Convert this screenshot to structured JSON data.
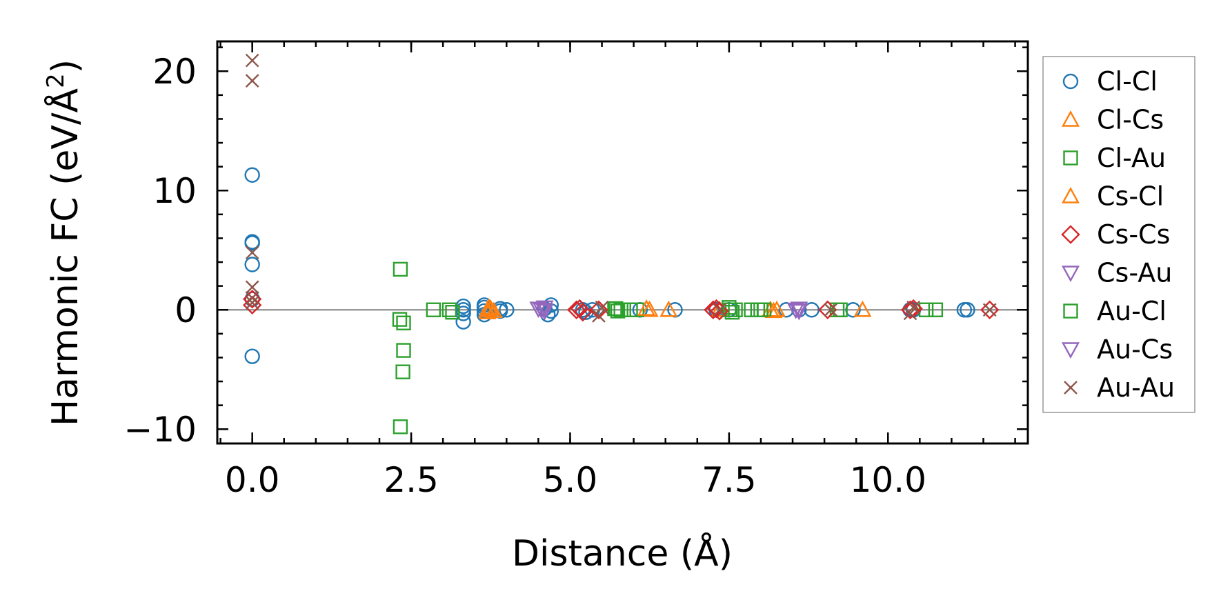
{
  "chart_data": {
    "type": "scatter",
    "title": "",
    "xlabel": "Distance (Å)",
    "ylabel_main": "Harmonic FC (eV/Å",
    "ylabel_sup": "2",
    "ylabel_end": ")",
    "xlim": [
      -0.55,
      12.2
    ],
    "ylim": [
      -11.2,
      22.5
    ],
    "xticks": [
      0.0,
      2.5,
      5.0,
      7.5,
      10.0
    ],
    "xtick_labels": [
      "0.0",
      "2.5",
      "5.0",
      "7.5",
      "10.0"
    ],
    "yticks": [
      -10,
      0,
      10,
      20
    ],
    "ytick_labels": [
      "−10",
      "0",
      "10",
      "20"
    ],
    "x_minor_step": 0.5,
    "y_minor_step": 2,
    "zero_line": true,
    "legend_position": "outside-right",
    "series": [
      {
        "name": "Cl-Cl",
        "marker": "circle",
        "color": "#1f77b4",
        "points": [
          [
            0,
            11.3
          ],
          [
            0,
            5.7
          ],
          [
            0,
            5.6
          ],
          [
            0,
            3.8
          ],
          [
            0,
            0.9
          ],
          [
            0,
            -3.9
          ],
          [
            3.32,
            0.3
          ],
          [
            3.32,
            0
          ],
          [
            3.32,
            -0.3
          ],
          [
            3.32,
            -1.0
          ],
          [
            3.65,
            0.4
          ],
          [
            3.65,
            0.2
          ],
          [
            3.65,
            -0.1
          ],
          [
            3.65,
            -0.4
          ],
          [
            3.9,
            0.1
          ],
          [
            3.9,
            -0.1
          ],
          [
            4.0,
            0
          ],
          [
            4.6,
            0.1
          ],
          [
            4.65,
            -0.4
          ],
          [
            4.7,
            0.4
          ],
          [
            4.7,
            -0.1
          ],
          [
            5.2,
            0
          ],
          [
            5.25,
            -0.2
          ],
          [
            5.35,
            0
          ],
          [
            6.1,
            0
          ],
          [
            6.65,
            0
          ],
          [
            7.3,
            0
          ],
          [
            7.5,
            0
          ],
          [
            8.4,
            0
          ],
          [
            8.6,
            0
          ],
          [
            8.8,
            0
          ],
          [
            9.45,
            0
          ],
          [
            10.35,
            0
          ],
          [
            10.4,
            0
          ],
          [
            11.2,
            0
          ],
          [
            11.25,
            0
          ]
        ]
      },
      {
        "name": "Cl-Cs",
        "marker": "triangle-up",
        "color": "#ff7f0e",
        "points": [
          [
            3.7,
            0
          ],
          [
            3.75,
            0.1
          ],
          [
            3.8,
            -0.1
          ],
          [
            6.25,
            0
          ],
          [
            6.55,
            0
          ],
          [
            7.35,
            0
          ],
          [
            8.15,
            0
          ],
          [
            8.25,
            0
          ],
          [
            9.6,
            0
          ]
        ]
      },
      {
        "name": "Cl-Au",
        "marker": "square",
        "color": "#2ca02c",
        "points": [
          [
            2.85,
            0
          ],
          [
            3.1,
            0
          ],
          [
            3.15,
            -0.2
          ],
          [
            5.7,
            0.1
          ],
          [
            5.75,
            -0.1
          ],
          [
            5.8,
            0
          ],
          [
            5.95,
            0
          ],
          [
            6.05,
            0
          ],
          [
            7.5,
            0.2
          ],
          [
            7.55,
            -0.2
          ],
          [
            7.6,
            0
          ],
          [
            7.85,
            0
          ],
          [
            7.95,
            0
          ],
          [
            8.05,
            0
          ],
          [
            9.2,
            0
          ],
          [
            10.6,
            0
          ],
          [
            10.75,
            0
          ]
        ]
      },
      {
        "name": "Cs-Cl",
        "marker": "triangle-up",
        "color": "#ff7f0e",
        "points": [
          [
            3.7,
            -0.2
          ],
          [
            3.72,
            0.2
          ],
          [
            6.2,
            0.1
          ],
          [
            8.2,
            -0.1
          ]
        ]
      },
      {
        "name": "Cs-Cs",
        "marker": "diamond",
        "color": "#d62728",
        "points": [
          [
            0,
            0.9
          ],
          [
            0,
            0.4
          ],
          [
            5.1,
            0
          ],
          [
            5.15,
            0.1
          ],
          [
            5.2,
            -0.2
          ],
          [
            5.45,
            0
          ],
          [
            7.25,
            0
          ],
          [
            7.3,
            0.1
          ],
          [
            7.35,
            -0.1
          ],
          [
            9.05,
            0
          ],
          [
            10.35,
            0
          ],
          [
            10.4,
            0.1
          ],
          [
            11.6,
            0
          ]
        ]
      },
      {
        "name": "Cs-Au",
        "marker": "triangle-down",
        "color": "#9467bd",
        "points": [
          [
            4.5,
            0.1
          ],
          [
            4.55,
            0
          ],
          [
            4.6,
            -0.1
          ],
          [
            8.55,
            0
          ],
          [
            8.6,
            0.1
          ]
        ]
      },
      {
        "name": "Au-Cl",
        "marker": "square",
        "color": "#2ca02c",
        "points": [
          [
            2.33,
            3.4
          ],
          [
            2.32,
            -0.8
          ],
          [
            2.38,
            -1.1
          ],
          [
            2.38,
            -3.4
          ],
          [
            2.37,
            -5.2
          ],
          [
            2.33,
            -9.8
          ],
          [
            5.72,
            0.1
          ],
          [
            7.52,
            0
          ],
          [
            8.0,
            0
          ],
          [
            9.25,
            0
          ]
        ]
      },
      {
        "name": "Au-Cs",
        "marker": "triangle-down",
        "color": "#9467bd",
        "points": [
          [
            4.6,
            0.2
          ],
          [
            8.6,
            -0.1
          ]
        ]
      },
      {
        "name": "Au-Au",
        "marker": "x",
        "color": "#8c564b",
        "points": [
          [
            0,
            20.9
          ],
          [
            0,
            19.2
          ],
          [
            0,
            4.8
          ],
          [
            0,
            1.9
          ],
          [
            0,
            1.0
          ],
          [
            0,
            0.6
          ],
          [
            5.45,
            -0.5
          ],
          [
            5.5,
            0.2
          ],
          [
            7.35,
            0
          ],
          [
            9.1,
            0
          ],
          [
            10.35,
            -0.3
          ],
          [
            10.4,
            0.2
          ],
          [
            11.6,
            0
          ]
        ]
      }
    ]
  }
}
